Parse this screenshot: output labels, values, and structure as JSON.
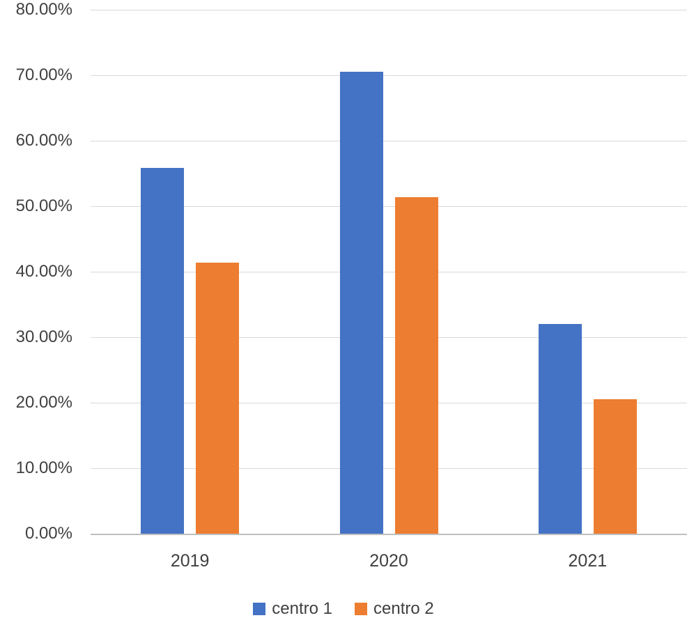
{
  "chart_data": {
    "type": "bar",
    "title": "",
    "xlabel": "",
    "ylabel": "",
    "categories": [
      "2019",
      "2020",
      "2021"
    ],
    "series": [
      {
        "name": "centro 1",
        "color": "#4472c4",
        "values": [
          55.8,
          70.5,
          32.0
        ]
      },
      {
        "name": "centro 2",
        "color": "#ed7d31",
        "values": [
          41.4,
          51.4,
          20.5
        ]
      }
    ],
    "ylim": [
      0,
      80
    ],
    "yticks": [
      {
        "value": 0,
        "label": "0.00%"
      },
      {
        "value": 10,
        "label": "10.00%"
      },
      {
        "value": 20,
        "label": "20.00%"
      },
      {
        "value": 30,
        "label": "30.00%"
      },
      {
        "value": 40,
        "label": "40.00%"
      },
      {
        "value": 50,
        "label": "50.00%"
      },
      {
        "value": 60,
        "label": "60.00%"
      },
      {
        "value": 70,
        "label": "70.00%"
      },
      {
        "value": 80,
        "label": "80.00%"
      }
    ],
    "grid": true,
    "legend_position": "bottom",
    "colors": {
      "gridline": "#d9d9d9",
      "axis_line": "#bfbfbf",
      "text": "#404040",
      "background": "#ffffff"
    }
  }
}
